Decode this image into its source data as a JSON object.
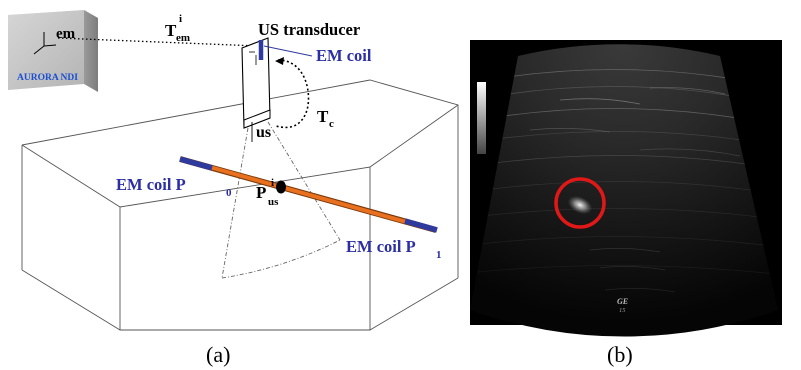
{
  "panel_a": {
    "caption": "(a)",
    "em_box": {
      "brand": "AURORA NDI",
      "frame_label": "em"
    },
    "labels": {
      "t_em_main": "T",
      "t_em_sup": "i",
      "t_em_sub": "em",
      "us_transducer": "US transducer",
      "em_coil_transducer": "EM coil",
      "t_c_main": "T",
      "t_c_sub": "c",
      "us_frame": "us",
      "em_coil_p0_main": "EM coil P",
      "em_coil_p0_sub": "0",
      "p_us_main": "P",
      "p_us_sup": "i",
      "p_us_sub": "us",
      "em_coil_p1_main": "EM coil P",
      "em_coil_p1_sub": "1"
    },
    "colors": {
      "needle": "#e8701e",
      "em_coil": "#2e3a9e",
      "label_blue": "#2b2fa3",
      "box_face": "#c7c7c7"
    }
  },
  "panel_b": {
    "caption": "(b)",
    "overlay_text_line1": "GE",
    "overlay_text_line2": "15",
    "colors": {
      "circle": "#e01818",
      "background": "#000000"
    }
  }
}
